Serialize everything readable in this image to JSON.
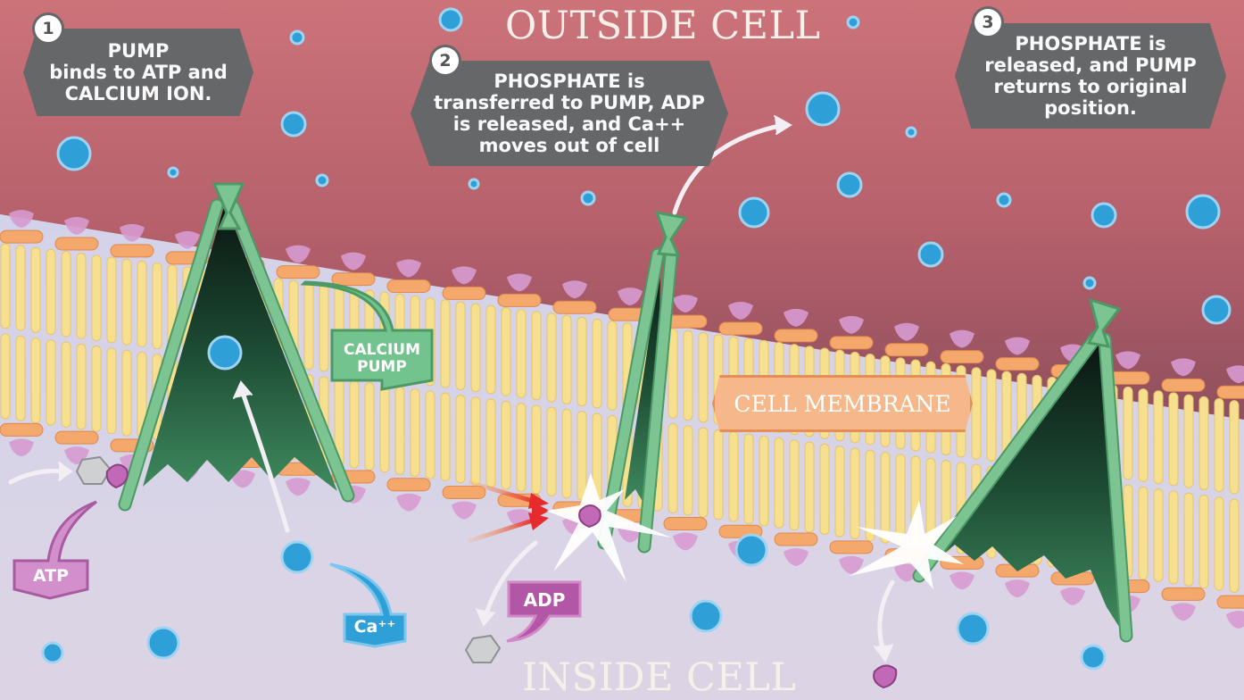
{
  "zones": {
    "outside": "OUTSIDE CELL",
    "inside": "INSIDE CELL"
  },
  "steps": [
    {
      "number": "1",
      "lines": [
        "PUMP",
        "binds to ATP and",
        "CALCIUM ION."
      ]
    },
    {
      "number": "2",
      "lines": [
        "PHOSPHATE is",
        "transferred to PUMP, ADP",
        "is released, and Ca++",
        "moves out of cell"
      ]
    },
    {
      "number": "3",
      "lines": [
        "PHOSPHATE is",
        "released, and PUMP",
        "returns to original",
        "position."
      ]
    }
  ],
  "labels": {
    "calcium_pump": [
      "CALCIUM",
      "PUMP"
    ],
    "cell_membrane": "CELL MEMBRANE",
    "atp": "ATP",
    "adp": "ADP",
    "calcium_ion": "Ca⁺⁺"
  },
  "colors": {
    "outside_top": "#cb6f75",
    "outside_bottom": "#94525e",
    "inside": "#d9d2e6",
    "calcium_ion": "#2f9fd8",
    "pump_green": "#6dbb8a",
    "lipid_head": "#f5a86c",
    "lipid_tail": "#f6df8e",
    "protein_pink": "#d79ad0",
    "callout_grey": "#666769"
  }
}
